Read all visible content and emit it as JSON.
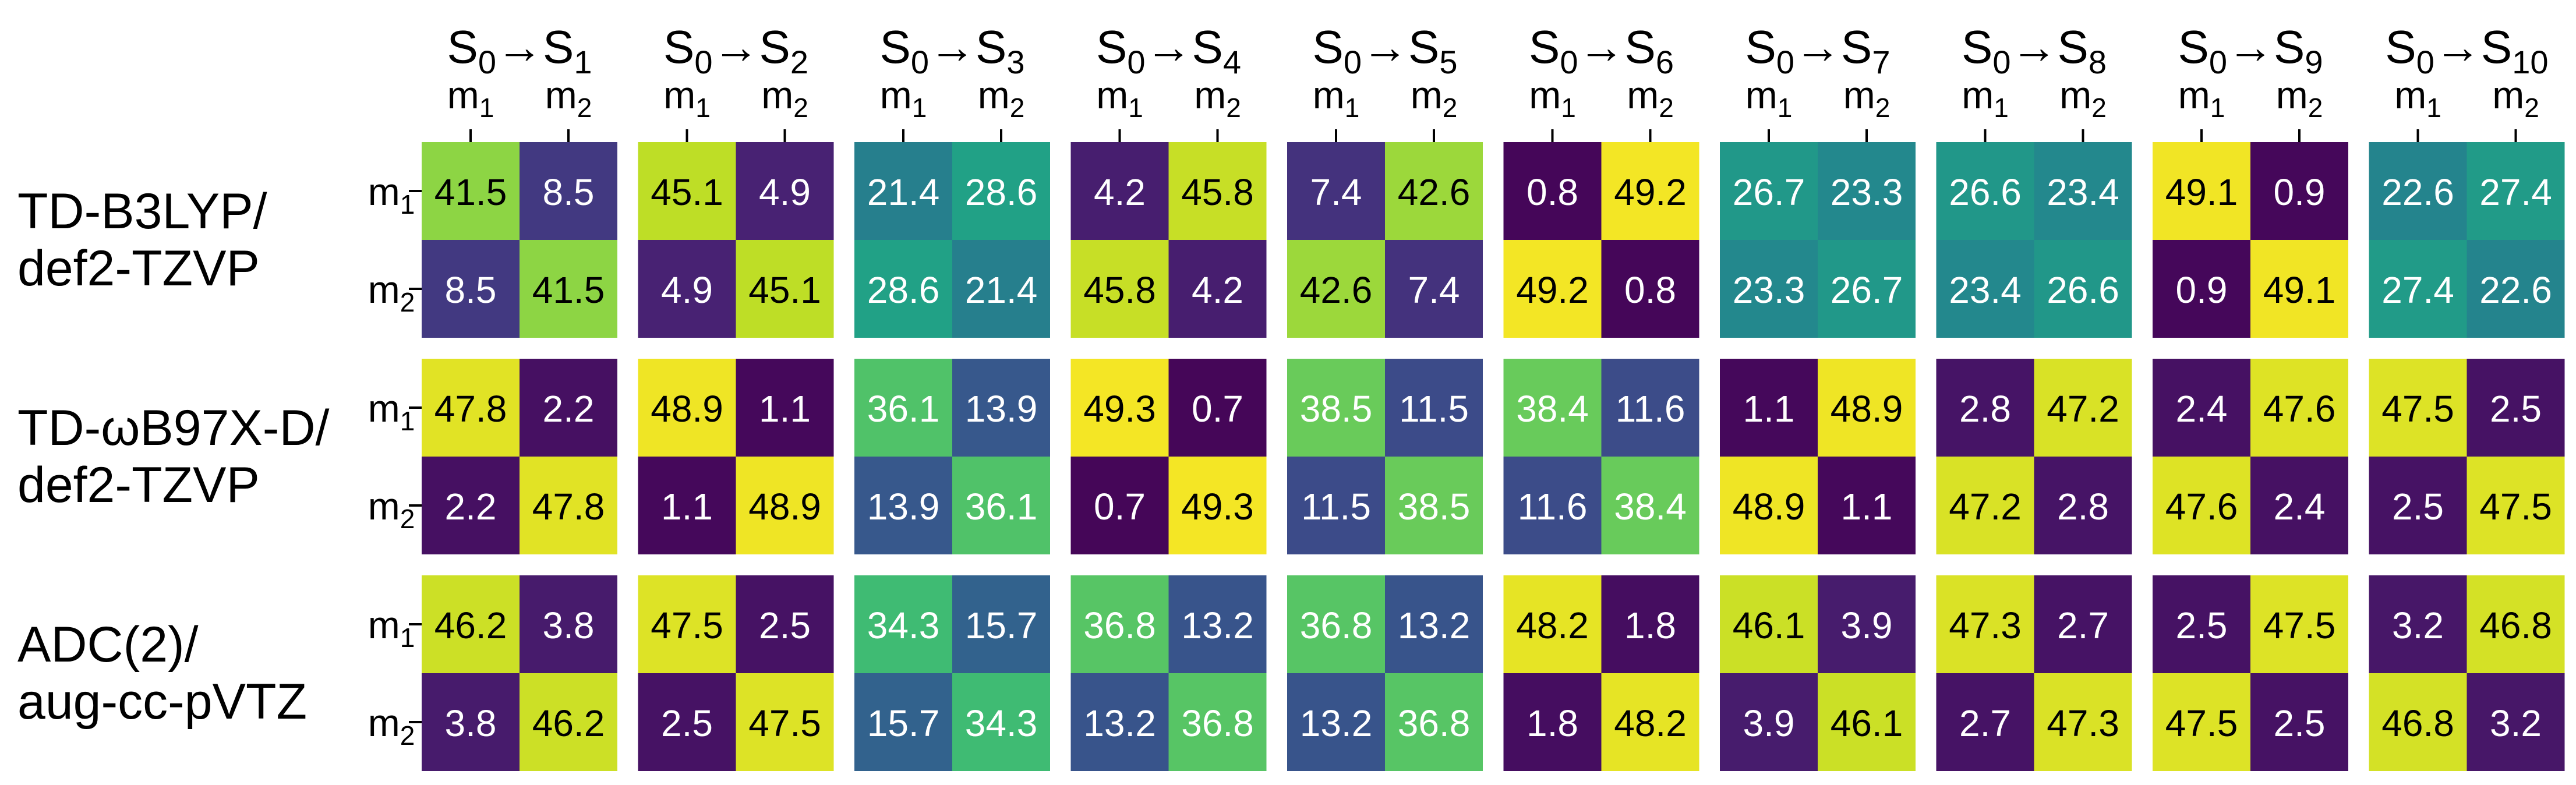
{
  "chart_data": {
    "type": "heatmap",
    "colormap": "viridis",
    "value_range": [
      0,
      50
    ],
    "column_titles": [
      "S0→S1",
      "S0→S2",
      "S0→S3",
      "S0→S4",
      "S0→S5",
      "S0→S6",
      "S0→S7",
      "S0→S8",
      "S0→S9",
      "S0→S10"
    ],
    "transition_superscripts": {
      "from": "0",
      "to": [
        "1",
        "2",
        "3",
        "4",
        "5",
        "6",
        "7",
        "8",
        "9",
        "10"
      ]
    },
    "tick_labels": [
      "m1",
      "m2"
    ],
    "methods": [
      {
        "name": "TD-B3LYP/ def2-TZVP",
        "label_lines": [
          "TD-B3LYP/",
          "def2-TZVP"
        ],
        "matrices": [
          [
            [
              41.5,
              8.5
            ],
            [
              8.5,
              41.5
            ]
          ],
          [
            [
              45.1,
              4.9
            ],
            [
              4.9,
              45.1
            ]
          ],
          [
            [
              21.4,
              28.6
            ],
            [
              28.6,
              21.4
            ]
          ],
          [
            [
              4.2,
              45.8
            ],
            [
              45.8,
              4.2
            ]
          ],
          [
            [
              7.4,
              42.6
            ],
            [
              42.6,
              7.4
            ]
          ],
          [
            [
              0.8,
              49.2
            ],
            [
              49.2,
              0.8
            ]
          ],
          [
            [
              26.7,
              23.3
            ],
            [
              23.3,
              26.7
            ]
          ],
          [
            [
              26.6,
              23.4
            ],
            [
              23.4,
              26.6
            ]
          ],
          [
            [
              49.1,
              0.9
            ],
            [
              0.9,
              49.1
            ]
          ],
          [
            [
              22.6,
              27.4
            ],
            [
              27.4,
              22.6
            ]
          ]
        ]
      },
      {
        "name": "TD-ωB97X-D/ def2-TZVP",
        "label_lines": [
          "TD-ωB97X-D/",
          "def2-TZVP"
        ],
        "matrices": [
          [
            [
              47.8,
              2.2
            ],
            [
              2.2,
              47.8
            ]
          ],
          [
            [
              48.9,
              1.1
            ],
            [
              1.1,
              48.9
            ]
          ],
          [
            [
              36.1,
              13.9
            ],
            [
              13.9,
              36.1
            ]
          ],
          [
            [
              49.3,
              0.7
            ],
            [
              0.7,
              49.3
            ]
          ],
          [
            [
              38.5,
              11.5
            ],
            [
              11.5,
              38.5
            ]
          ],
          [
            [
              38.4,
              11.6
            ],
            [
              11.6,
              38.4
            ]
          ],
          [
            [
              1.1,
              48.9
            ],
            [
              48.9,
              1.1
            ]
          ],
          [
            [
              2.8,
              47.2
            ],
            [
              47.2,
              2.8
            ]
          ],
          [
            [
              2.4,
              47.6
            ],
            [
              47.6,
              2.4
            ]
          ],
          [
            [
              47.5,
              2.5
            ],
            [
              2.5,
              47.5
            ]
          ]
        ]
      },
      {
        "name": "ADC(2)/ aug-cc-pVTZ",
        "label_lines": [
          "ADC(2)/",
          "aug-cc-pVTZ"
        ],
        "matrices": [
          [
            [
              46.2,
              3.8
            ],
            [
              3.8,
              46.2
            ]
          ],
          [
            [
              47.5,
              2.5
            ],
            [
              2.5,
              47.5
            ]
          ],
          [
            [
              34.3,
              15.7
            ],
            [
              15.7,
              34.3
            ]
          ],
          [
            [
              36.8,
              13.2
            ],
            [
              13.2,
              36.8
            ]
          ],
          [
            [
              36.8,
              13.2
            ],
            [
              13.2,
              36.8
            ]
          ],
          [
            [
              48.2,
              1.8
            ],
            [
              1.8,
              48.2
            ]
          ],
          [
            [
              46.1,
              3.9
            ],
            [
              3.9,
              46.1
            ]
          ],
          [
            [
              47.3,
              2.7
            ],
            [
              2.7,
              47.3
            ]
          ],
          [
            [
              2.5,
              47.5
            ],
            [
              47.5,
              2.5
            ]
          ],
          [
            [
              3.2,
              46.8
            ],
            [
              46.8,
              3.2
            ]
          ]
        ]
      }
    ],
    "colorbar": false,
    "legend": false,
    "grid": false
  }
}
